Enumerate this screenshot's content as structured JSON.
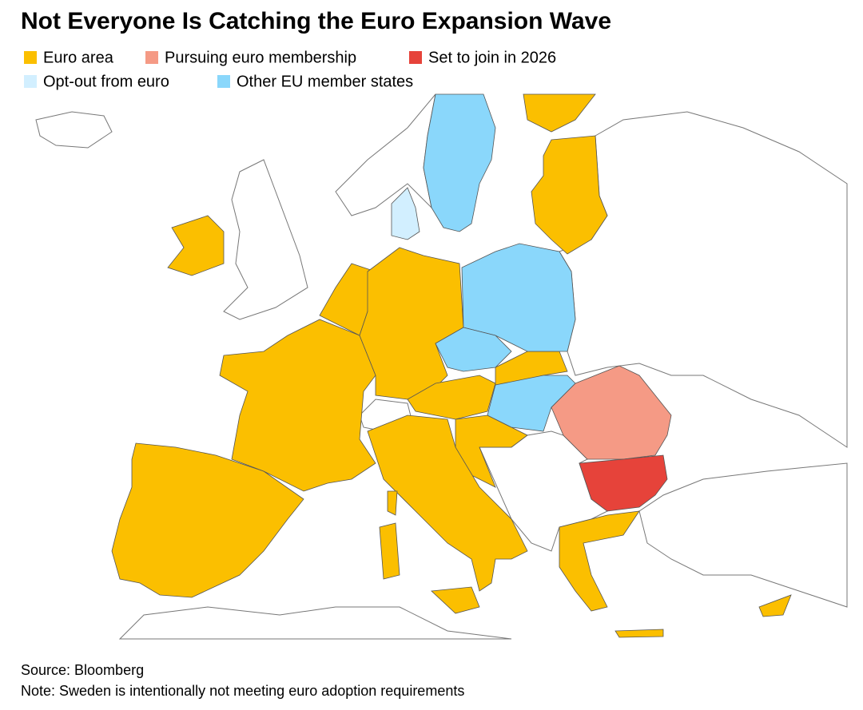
{
  "header": {
    "title": "Not Everyone Is Catching the Euro Expansion Wave"
  },
  "legend": {
    "items": [
      {
        "label": "Euro area",
        "color": "#fbbf00"
      },
      {
        "label": "Pursuing euro membership",
        "color": "#f59a85"
      },
      {
        "label": "Set to join in 2026",
        "color": "#e6433a"
      },
      {
        "label": "Opt-out from euro",
        "color": "#d2efff"
      },
      {
        "label": "Other EU member states",
        "color": "#8ad7fb"
      }
    ]
  },
  "footer": {
    "source": "Source: Bloomberg",
    "note": "Note: Sweden is intentionally not meeting euro adoption requirements"
  }
}
